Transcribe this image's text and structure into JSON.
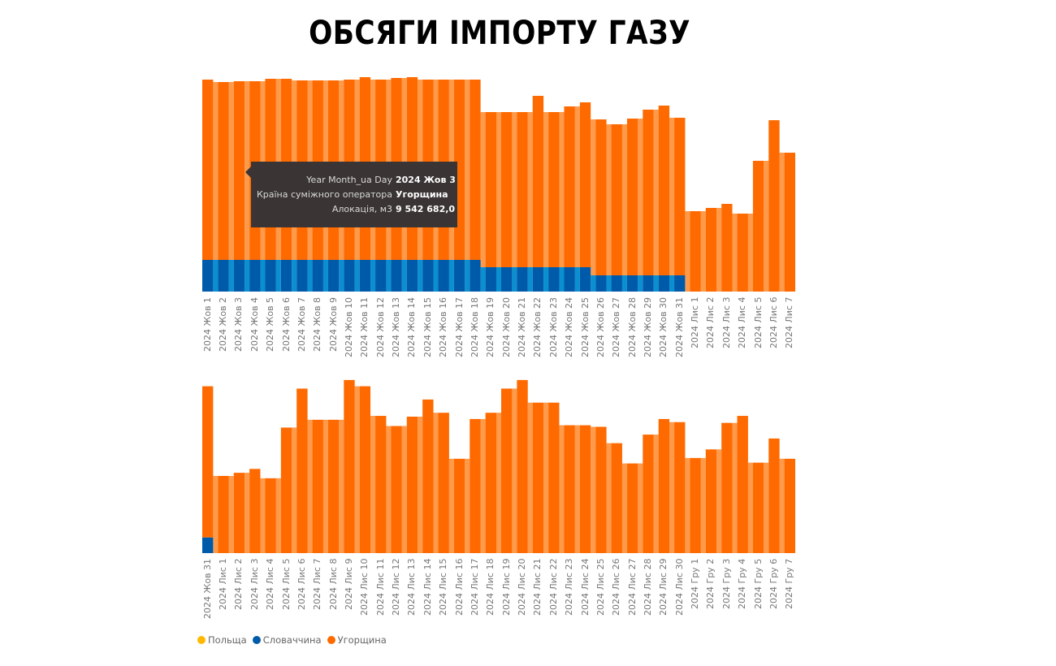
{
  "title": "ОБСЯГИ ІМПОРТУ ГАЗУ",
  "colors": {
    "poland": "#FFB900",
    "slovakia": "#005AAA",
    "hungary": "#FF6A00",
    "hungary_light": "#FF9A4A",
    "slovakia_light": "#0A8FD0"
  },
  "tooltip": {
    "rows": [
      {
        "key": "Year Month_ua Day",
        "value": "2024 Жов 3"
      },
      {
        "key": "Країна суміжного оператора",
        "value": "Угорщина"
      },
      {
        "key": "Алокація, м3",
        "value": "9 542 682,0"
      }
    ]
  },
  "legend": [
    {
      "label": "Польща",
      "color": "#FFB900"
    },
    {
      "label": "Словаччина",
      "color": "#005AAA"
    },
    {
      "label": "Угорщина",
      "color": "#FF6A00"
    }
  ],
  "chart_data": [
    {
      "type": "bar",
      "stacked": true,
      "title": "",
      "xlabel": "",
      "ylabel": "Алокація, м3",
      "grid": false,
      "legend_position": "bottom-left",
      "categories": [
        "2024 Жов 1",
        "2024 Жов 2",
        "2024 Жов 3",
        "2024 Жов 4",
        "2024 Жов 5",
        "2024 Жов 6",
        "2024 Жов 7",
        "2024 Жов 8",
        "2024 Жов 9",
        "2024 Жов 10",
        "2024 Жов 11",
        "2024 Жов 12",
        "2024 Жов 13",
        "2024 Жов 14",
        "2024 Жов 15",
        "2024 Жов 16",
        "2024 Жов 17",
        "2024 Жов 18",
        "2024 Жов 19",
        "2024 Жов 20",
        "2024 Жов 21",
        "2024 Жов 22",
        "2024 Жов 23",
        "2024 Жов 24",
        "2024 Жов 25",
        "2024 Жов 26",
        "2024 Жов 27",
        "2024 Жов 28",
        "2024 Жов 29",
        "2024 Жов 30",
        "2024 Жов 31",
        "2024 Лис 1",
        "2024 Лис 2",
        "2024 Лис 3",
        "2024 Лис 4",
        "2024 Лис 5",
        "2024 Лис 6",
        "2024 Лис 7"
      ],
      "series": [
        {
          "name": "Словаччина",
          "color": "#005AAA",
          "values": [
            39,
            39,
            39,
            39,
            39,
            39,
            39,
            39,
            39,
            39,
            39,
            39,
            39,
            39,
            39,
            39,
            39,
            39,
            30,
            30,
            30,
            30,
            30,
            30,
            30,
            20,
            20,
            20,
            20,
            20,
            20,
            0,
            0,
            0,
            0,
            0,
            0,
            0
          ]
        },
        {
          "name": "Угорщина",
          "color": "#FF6A00",
          "values": [
            222,
            219,
            220,
            220,
            223,
            223,
            221,
            221,
            221,
            222,
            225,
            222,
            224,
            225,
            222,
            222,
            222,
            222,
            191,
            191,
            191,
            211,
            191,
            198,
            203,
            192,
            186,
            193,
            204,
            209,
            194,
            99,
            103,
            108,
            96,
            161,
            211,
            171
          ]
        }
      ],
      "totals_px_scale": "top of plot ≈ 262 units; baseline at 0",
      "tooltip_point": {
        "category": "2024 Жов 3",
        "series": "Угорщина",
        "value": 9542682.0
      }
    },
    {
      "type": "bar",
      "stacked": true,
      "title": "",
      "xlabel": "",
      "ylabel": "Алокація, м3",
      "grid": false,
      "categories": [
        "2024 Жов 31",
        "2024 Лис 1",
        "2024 Лис 2",
        "2024 Лис 3",
        "2024 Лис 4",
        "2024 Лис 5",
        "2024 Лис 6",
        "2024 Лис 7",
        "2024 Лис 8",
        "2024 Лис 9",
        "2024 Лис 10",
        "2024 Лис 11",
        "2024 Лис 12",
        "2024 Лис 13",
        "2024 Лис 14",
        "2024 Лис 15",
        "2024 Лис 16",
        "2024 Лис 17",
        "2024 Лис 18",
        "2024 Лис 19",
        "2024 Лис 20",
        "2024 Лис 21",
        "2024 Лис 22",
        "2024 Лис 23",
        "2024 Лис 24",
        "2024 Лис 25",
        "2024 Лис 26",
        "2024 Лис 27",
        "2024 Лис 28",
        "2024 Лис 29",
        "2024 Лис 30",
        "2024 Гру 1",
        "2024 Гру 2",
        "2024 Гру 3",
        "2024 Гру 4",
        "2024 Гру 5",
        "2024 Гру 6",
        "2024 Гру 7"
      ],
      "series": [
        {
          "name": "Словаччина",
          "color": "#005AAA",
          "values": [
            20,
            0,
            0,
            0,
            0,
            0,
            0,
            0,
            0,
            0,
            0,
            0,
            0,
            0,
            0,
            0,
            0,
            0,
            0,
            0,
            0,
            0,
            0,
            0,
            0,
            0,
            0,
            0,
            0,
            0,
            0,
            0,
            0,
            0,
            0,
            0,
            0,
            0
          ]
        },
        {
          "name": "Угорщина",
          "color": "#FF6A00",
          "values": [
            194,
            99,
            103,
            108,
            96,
            161,
            211,
            171,
            171,
            222,
            214,
            176,
            163,
            175,
            197,
            180,
            121,
            172,
            180,
            211,
            222,
            193,
            193,
            164,
            164,
            162,
            141,
            115,
            152,
            172,
            168,
            122,
            133,
            167,
            176,
            116,
            147,
            121
          ]
        }
      ]
    }
  ]
}
